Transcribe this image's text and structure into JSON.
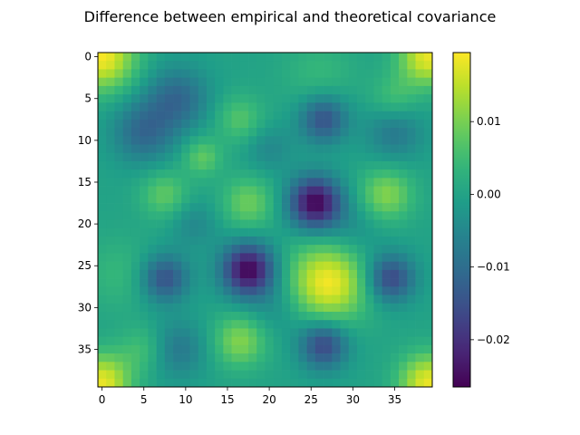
{
  "chart_data": {
    "type": "heatmap",
    "title": "Difference between empirical and theoretical covariance",
    "xlabel": "",
    "ylabel": "",
    "grid": false,
    "colormap": "viridis",
    "shape": [
      40,
      40
    ],
    "x_range": [
      -0.5,
      39.5
    ],
    "y_range": [
      39.5,
      -0.5
    ],
    "x_ticks": [
      0,
      5,
      10,
      15,
      20,
      25,
      30,
      35
    ],
    "y_ticks": [
      0,
      5,
      10,
      15,
      20,
      25,
      30,
      35
    ],
    "color_range": [
      -0.0265,
      0.0195
    ],
    "colorbar_ticks": [
      {
        "value": 0.01,
        "label": "0.01"
      },
      {
        "value": 0.0,
        "label": "0.00"
      },
      {
        "value": -0.01,
        "label": "−0.01"
      },
      {
        "value": -0.02,
        "label": "−0.02"
      }
    ],
    "features": [
      {
        "row": 0,
        "col": 0,
        "value": 0.019,
        "spread": 2.8
      },
      {
        "row": 0,
        "col": 39,
        "value": 0.018,
        "spread": 2.4
      },
      {
        "row": 39,
        "col": 0,
        "value": 0.018,
        "spread": 2.4
      },
      {
        "row": 39,
        "col": 39,
        "value": 0.018,
        "spread": 2.4
      },
      {
        "row": 17.5,
        "col": 25.5,
        "value": -0.026,
        "spread": 2.2
      },
      {
        "row": 25.5,
        "col": 17.5,
        "value": -0.026,
        "spread": 2.2
      },
      {
        "row": 27,
        "col": 27,
        "value": 0.019,
        "spread": 3.3
      },
      {
        "row": 17.5,
        "col": 17.5,
        "value": 0.009,
        "spread": 2.2
      },
      {
        "row": 16.5,
        "col": 34,
        "value": 0.011,
        "spread": 2.2
      },
      {
        "row": 34,
        "col": 16.5,
        "value": 0.011,
        "spread": 2.2
      },
      {
        "row": 26.5,
        "col": 34.5,
        "value": -0.017,
        "spread": 2.0
      },
      {
        "row": 34.5,
        "col": 26.5,
        "value": -0.017,
        "spread": 2.0
      },
      {
        "row": 16.5,
        "col": 7.5,
        "value": 0.008,
        "spread": 2.0
      },
      {
        "row": 7.5,
        "col": 16.5,
        "value": 0.007,
        "spread": 2.0
      },
      {
        "row": 26.5,
        "col": 7.5,
        "value": -0.015,
        "spread": 2.0
      },
      {
        "row": 7.5,
        "col": 26.5,
        "value": -0.015,
        "spread": 2.0
      },
      {
        "row": 12,
        "col": 12,
        "value": 0.008,
        "spread": 1.6
      },
      {
        "row": 5,
        "col": 9,
        "value": -0.011,
        "spread": 2.6
      },
      {
        "row": 9,
        "col": 5,
        "value": -0.011,
        "spread": 2.6
      },
      {
        "row": 5,
        "col": 35,
        "value": 0.006,
        "spread": 2.0
      },
      {
        "row": 35,
        "col": 5,
        "value": 0.006,
        "spread": 2.0
      },
      {
        "row": 9,
        "col": 35,
        "value": -0.008,
        "spread": 2.4
      },
      {
        "row": 35,
        "col": 9,
        "value": -0.008,
        "spread": 2.4
      },
      {
        "row": 2,
        "col": 26,
        "value": 0.004,
        "spread": 3.0
      },
      {
        "row": 26,
        "col": 2,
        "value": 0.004,
        "spread": 3.0
      },
      {
        "row": 21,
        "col": 30,
        "value": -0.004,
        "spread": 2.5
      },
      {
        "row": 30,
        "col": 21,
        "value": -0.004,
        "spread": 2.5
      },
      {
        "row": 20,
        "col": 11,
        "value": -0.005,
        "spread": 2.0
      },
      {
        "row": 11,
        "col": 20,
        "value": -0.005,
        "spread": 2.0
      }
    ]
  }
}
